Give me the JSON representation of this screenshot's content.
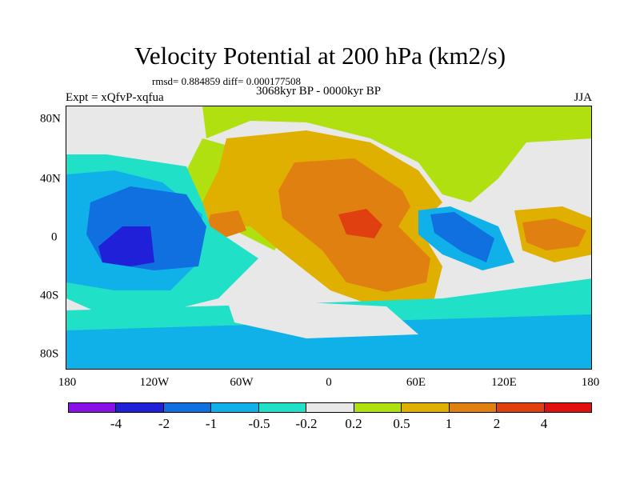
{
  "title": "Velocity Potential at 200 hPa (km2/s)",
  "stats": "rmsd= 0.884859 diff= 0.000177508",
  "period": "3068kyr BP - 0000kyr BP",
  "expt": "Expt = xQfvP-xqfua",
  "season": "JJA",
  "lat_labels": [
    "80N",
    "40N",
    "0",
    "40S",
    "80S"
  ],
  "lon_labels": [
    "180",
    "120W",
    "60W",
    "0",
    "60E",
    "120E",
    "180"
  ],
  "colorbar": {
    "colors": [
      "#8a10e8",
      "#2020d8",
      "#1070e0",
      "#10b0e8",
      "#20e0c8",
      "#e8e8e8",
      "#b0e010",
      "#e0b000",
      "#e08010",
      "#e04010",
      "#e01010"
    ],
    "labels": [
      "-4",
      "-2",
      "-1",
      "-0.5",
      "-0.2",
      "0.2",
      "0.5",
      "1",
      "2",
      "4"
    ]
  }
}
